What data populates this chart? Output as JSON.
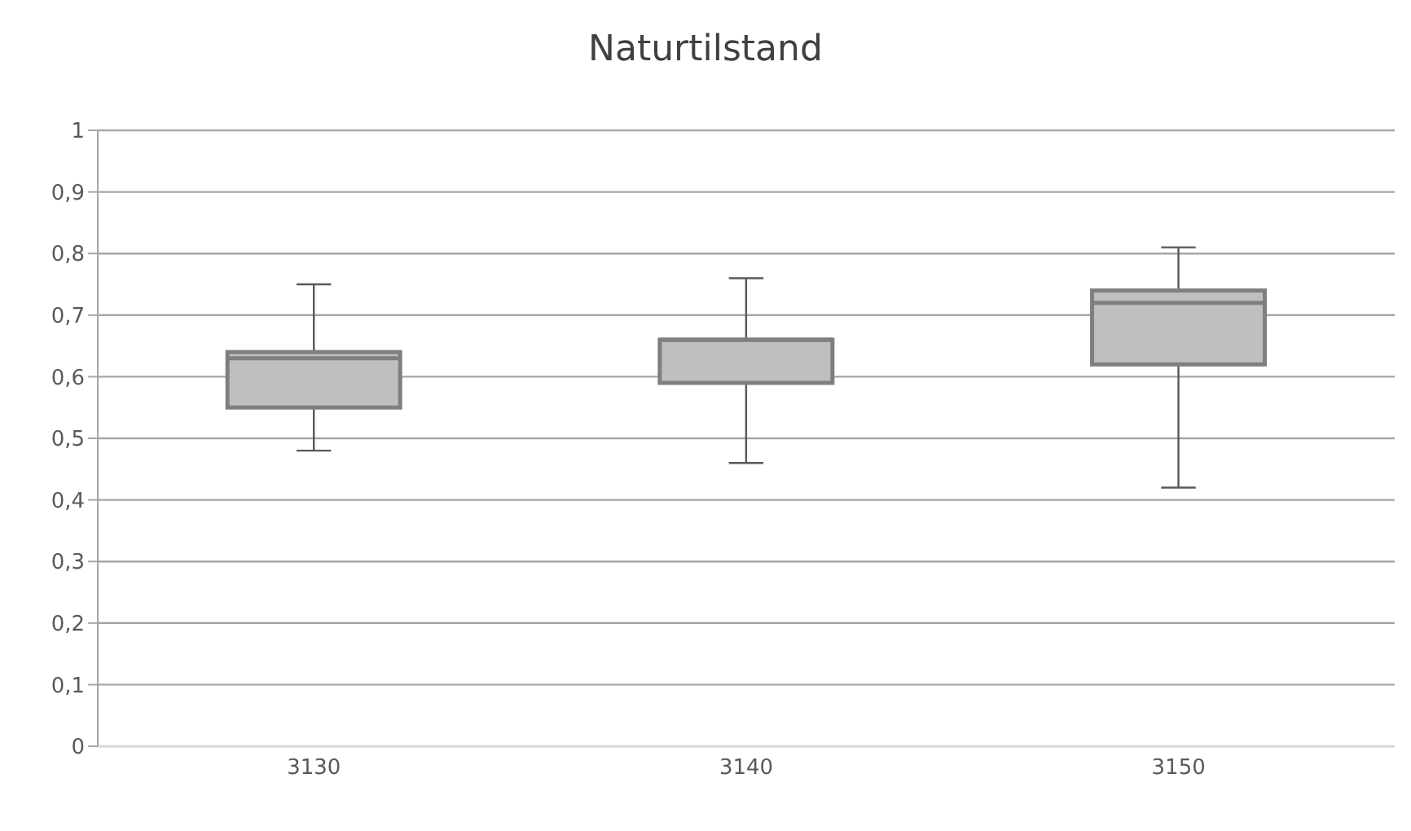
{
  "chart_data": {
    "type": "box",
    "title": "Naturtilstand",
    "categories": [
      "3130",
      "3140",
      "3150"
    ],
    "boxes": [
      {
        "low": 0.48,
        "q1": 0.55,
        "median": 0.63,
        "q3": 0.64,
        "high": 0.75
      },
      {
        "low": 0.46,
        "q1": 0.59,
        "median": 0.66,
        "q3": 0.66,
        "high": 0.76
      },
      {
        "low": 0.42,
        "q1": 0.62,
        "median": 0.72,
        "q3": 0.74,
        "high": 0.81
      }
    ],
    "color": "#bfbfbf",
    "ylim": [
      0,
      1
    ],
    "yticks": [
      0,
      {
        "value": 0.1,
        "label": "0,1"
      },
      {
        "value": 0.2,
        "label": "0,2"
      },
      {
        "value": 0.3,
        "label": "0,3"
      },
      {
        "value": 0.4,
        "label": "0,4"
      },
      {
        "value": 0.5,
        "label": "0,5"
      },
      {
        "value": 0.6,
        "label": "0,6"
      },
      {
        "value": 0.7,
        "label": "0,7"
      },
      {
        "value": 0.8,
        "label": "0,8"
      },
      {
        "value": 0.9,
        "label": "0,9"
      },
      1
    ],
    "grid": "y"
  }
}
